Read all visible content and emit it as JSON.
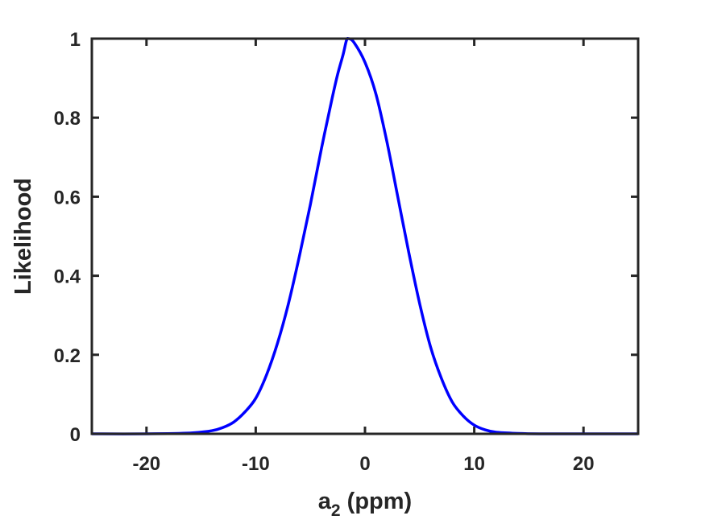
{
  "chart_data": {
    "type": "line",
    "xlabel": {
      "base": "a",
      "subscript": "2",
      "suffix": " (ppm)"
    },
    "ylabel": "Likelihood",
    "xlim": [
      -25,
      25
    ],
    "ylim": [
      0,
      1
    ],
    "xticks": [
      -20,
      -10,
      0,
      10,
      20
    ],
    "yticks": [
      0,
      0.2,
      0.4,
      0.6,
      0.8,
      1
    ],
    "xtick_labels": [
      "-20",
      "-10",
      "0",
      "10",
      "20"
    ],
    "ytick_labels": [
      "0",
      "0.2",
      "0.4",
      "0.6",
      "0.8",
      "1"
    ],
    "grid": false,
    "series": [
      {
        "color": "#0000ff",
        "x": [
          -25,
          -20,
          -16,
          -14,
          -13,
          -12,
          -11,
          -10,
          -9,
          -8,
          -7,
          -6,
          -5,
          -4,
          -3,
          -2.5,
          -2,
          -1.7,
          -1.5,
          -1,
          0,
          1,
          2,
          3,
          4,
          5,
          6,
          7,
          8,
          9,
          10,
          11,
          12,
          14,
          16,
          20,
          25
        ],
        "y": [
          0,
          0,
          0.002,
          0.008,
          0.016,
          0.03,
          0.055,
          0.09,
          0.15,
          0.23,
          0.33,
          0.45,
          0.58,
          0.72,
          0.85,
          0.91,
          0.96,
          0.995,
          1.0,
          0.99,
          0.94,
          0.86,
          0.74,
          0.6,
          0.46,
          0.33,
          0.22,
          0.14,
          0.08,
          0.045,
          0.022,
          0.01,
          0.004,
          0.001,
          0,
          0,
          0
        ]
      }
    ]
  }
}
